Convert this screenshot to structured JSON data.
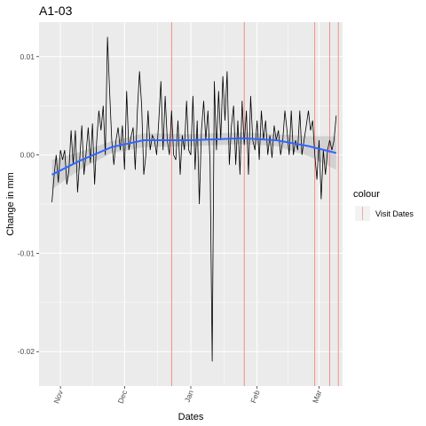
{
  "chart_data": {
    "type": "line",
    "title": "A1-03",
    "xlabel": "Dates",
    "ylabel": "Change in mm",
    "x_range": [
      "2015-10-22",
      "2016-03-12"
    ],
    "ylim": [
      -0.0235,
      0.0135
    ],
    "y_ticks": [
      0.01,
      0.0,
      -0.01,
      -0.02
    ],
    "y_tick_labels": [
      "0.01",
      "0.00",
      "-0.01",
      "-0.02"
    ],
    "x_ticks": [
      "2015-11-01",
      "2015-12-01",
      "2016-01-01",
      "2016-02-01",
      "2016-03-01"
    ],
    "x_tick_labels": [
      "Nov",
      "Dec",
      "Jan",
      "Feb",
      "Mar"
    ],
    "grid": true,
    "legend": {
      "title": "colour",
      "entries": [
        "Visit Dates"
      ],
      "placement": "right"
    },
    "visit_dates": [
      "2015-12-23",
      "2016-01-26",
      "2016-02-28",
      "2016-03-06",
      "2016-03-10"
    ],
    "series": [
      {
        "x": [
          "2015-10-28",
          "2015-10-29",
          "2015-10-30",
          "2015-10-31",
          "2015-11-01",
          "2015-11-02",
          "2015-11-03",
          "2015-11-04",
          "2015-11-05",
          "2015-11-06",
          "2015-11-07",
          "2015-11-08",
          "2015-11-09",
          "2015-11-10",
          "2015-11-11",
          "2015-11-12",
          "2015-11-13",
          "2015-11-14",
          "2015-11-15",
          "2015-11-16",
          "2015-11-17",
          "2015-11-18",
          "2015-11-19",
          "2015-11-20",
          "2015-11-21",
          "2015-11-22",
          "2015-11-23",
          "2015-11-24",
          "2015-11-25",
          "2015-11-26",
          "2015-11-27",
          "2015-11-28",
          "2015-11-29",
          "2015-11-30",
          "2015-12-01",
          "2015-12-02",
          "2015-12-03",
          "2015-12-04",
          "2015-12-05",
          "2015-12-06",
          "2015-12-07",
          "2015-12-08",
          "2015-12-09",
          "2015-12-10",
          "2015-12-11",
          "2015-12-12",
          "2015-12-13",
          "2015-12-14",
          "2015-12-15",
          "2015-12-16",
          "2015-12-17",
          "2015-12-18",
          "2015-12-19",
          "2015-12-20",
          "2015-12-21",
          "2015-12-22",
          "2015-12-23",
          "2015-12-24",
          "2015-12-25",
          "2015-12-26",
          "2015-12-27",
          "2015-12-28",
          "2015-12-29",
          "2015-12-30",
          "2015-12-31",
          "2016-01-01",
          "2016-01-02",
          "2016-01-03",
          "2016-01-04",
          "2016-01-05",
          "2016-01-06",
          "2016-01-07",
          "2016-01-08",
          "2016-01-09",
          "2016-01-10",
          "2016-01-11",
          "2016-01-12",
          "2016-01-13",
          "2016-01-14",
          "2016-01-15",
          "2016-01-16",
          "2016-01-17",
          "2016-01-18",
          "2016-01-19",
          "2016-01-20",
          "2016-01-21",
          "2016-01-22",
          "2016-01-23",
          "2016-01-24",
          "2016-01-25",
          "2016-01-26",
          "2016-01-27",
          "2016-01-28",
          "2016-01-29",
          "2016-01-30",
          "2016-01-31",
          "2016-02-01",
          "2016-02-02",
          "2016-02-03",
          "2016-02-04",
          "2016-02-05",
          "2016-02-06",
          "2016-02-07",
          "2016-02-08",
          "2016-02-09",
          "2016-02-10",
          "2016-02-11",
          "2016-02-12",
          "2016-02-13",
          "2016-02-14",
          "2016-02-15",
          "2016-02-16",
          "2016-02-17",
          "2016-02-18",
          "2016-02-19",
          "2016-02-20",
          "2016-02-21",
          "2016-02-22",
          "2016-02-23",
          "2016-02-24",
          "2016-02-25",
          "2016-02-26",
          "2016-02-27",
          "2016-02-28",
          "2016-02-29",
          "2016-03-01",
          "2016-03-02",
          "2016-03-03",
          "2016-03-04",
          "2016-03-05",
          "2016-03-06",
          "2016-03-07",
          "2016-03-08",
          "2016-03-09"
        ],
        "values": [
          -0.0048,
          -0.0022,
          0.0,
          -0.0028,
          0.0005,
          -0.0005,
          0.0005,
          -0.003,
          -0.0015,
          0.0025,
          -0.001,
          0.0025,
          -0.0038,
          -0.0005,
          0.003,
          -0.002,
          0.0002,
          0.0028,
          -0.0008,
          0.0032,
          -0.003,
          0.0015,
          0.0045,
          0.0025,
          0.005,
          0.0,
          0.012,
          0.0065,
          0.0015,
          -0.001,
          0.0015,
          0.0028,
          0.0005,
          0.003,
          -0.0015,
          0.0065,
          0.0005,
          0.0018,
          0.0028,
          -0.0015,
          0.0045,
          0.0085,
          0.005,
          -0.002,
          0.0,
          0.0045,
          0.0005,
          0.002,
          0.0015,
          0.0,
          0.0035,
          0.0075,
          0.0005,
          0.006,
          0.0015,
          0.0,
          0.0045,
          0.0,
          -0.0005,
          0.0035,
          -0.002,
          0.002,
          0.0005,
          0.0055,
          0.0005,
          0.0,
          0.006,
          -0.0015,
          0.0035,
          -0.005,
          0.0025,
          0.0055,
          0.0015,
          0.0045,
          -0.0008,
          -0.021,
          0.0075,
          0.0005,
          0.0065,
          0.0015,
          0.008,
          0.0035,
          0.0085,
          -0.001,
          0.003,
          0.005,
          -0.001,
          0.0035,
          -0.002,
          0.0055,
          0.001,
          0.0045,
          -0.002,
          0.006,
          0.0015,
          0.0005,
          0.0035,
          -0.0005,
          0.0045,
          0.0015,
          0.0035,
          0.0,
          0.002,
          -0.0003,
          0.003,
          0.0015,
          0.0025,
          0.0,
          0.0015,
          0.0045,
          0.0025,
          0.0,
          0.0045,
          0.0,
          0.0015,
          0.0005,
          0.0045,
          0.0,
          0.0015,
          0.003,
          0.0045,
          0.0025,
          0.0035,
          0.0,
          -0.0025,
          0.0015,
          -0.0045,
          0.0005,
          -0.002,
          0.0005,
          0.0015,
          0.0005,
          0.0015,
          0.004
        ]
      },
      {
        "x": [
          "2015-10-28",
          "2015-11-10",
          "2015-11-25",
          "2015-12-10",
          "2016-01-01",
          "2016-01-25",
          "2016-02-10",
          "2016-02-25",
          "2016-03-09"
        ],
        "values": [
          -0.002,
          -0.0006,
          0.0008,
          0.0015,
          0.0015,
          0.0017,
          0.0015,
          0.0009,
          0.0002
        ],
        "band_lower": [
          -0.0035,
          -0.0015,
          0.0002,
          0.0008,
          0.0009,
          0.0011,
          0.0009,
          -0.0001,
          -0.0015
        ],
        "band_upper": [
          -0.0005,
          0.0003,
          0.0014,
          0.0022,
          0.0021,
          0.0023,
          0.0021,
          0.0019,
          0.0019
        ]
      }
    ]
  }
}
